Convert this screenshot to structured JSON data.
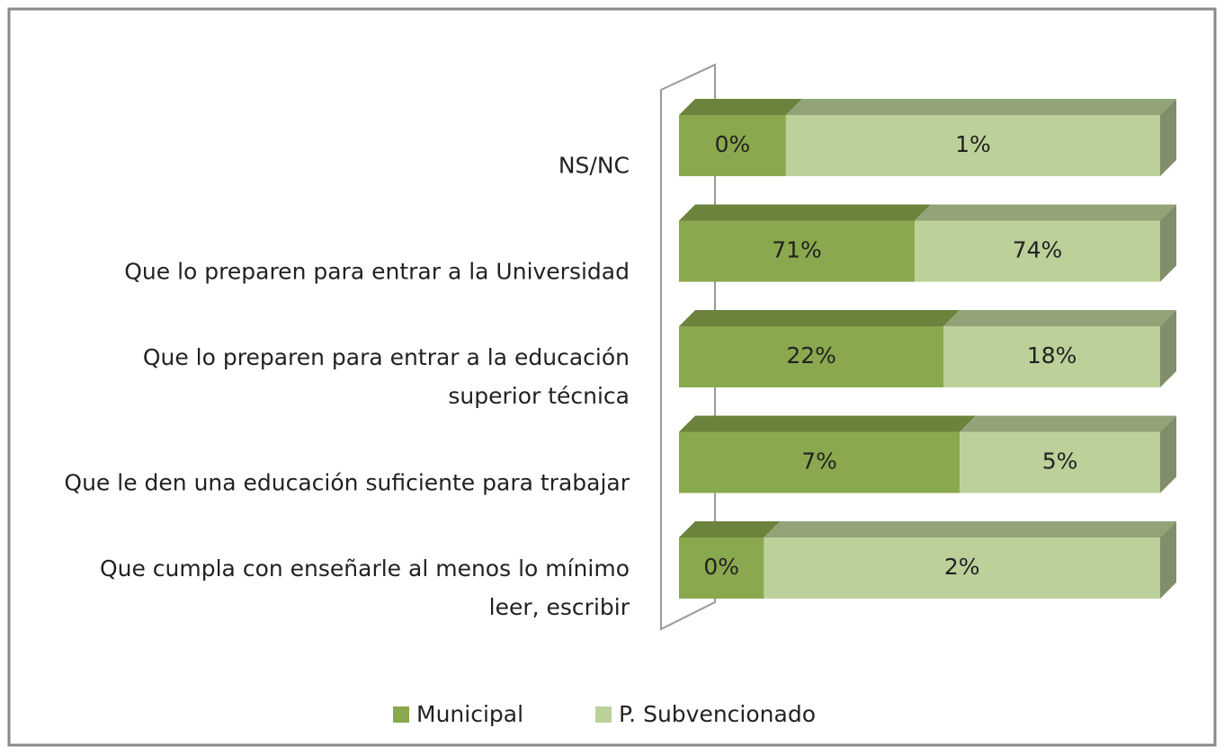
{
  "chart_data": {
    "type": "bar",
    "orientation": "horizontal",
    "stacking": "percent",
    "categories": [
      "NS/NC",
      "Que lo preparen para entrar a la Universidad",
      "Que lo preparen para entrar a la educación superior técnica",
      "Que le den una educación suficiente para trabajar",
      "Que cumpla con enseñarle al menos lo mínimo leer, escribir"
    ],
    "series": [
      {
        "name": "Municipal",
        "color": "#8aa84e",
        "values": [
          0.4,
          71,
          22,
          7,
          0.45
        ],
        "value_labels": [
          "0%",
          "71%",
          "22%",
          "7%",
          "0%"
        ]
      },
      {
        "name": "P. Subvencionado",
        "color": "#bcd19a",
        "values": [
          1.4,
          74,
          18,
          5,
          2.1
        ],
        "value_labels": [
          "1%",
          "74%",
          "18%",
          "5%",
          "2%"
        ]
      }
    ],
    "legend": "bottom"
  }
}
